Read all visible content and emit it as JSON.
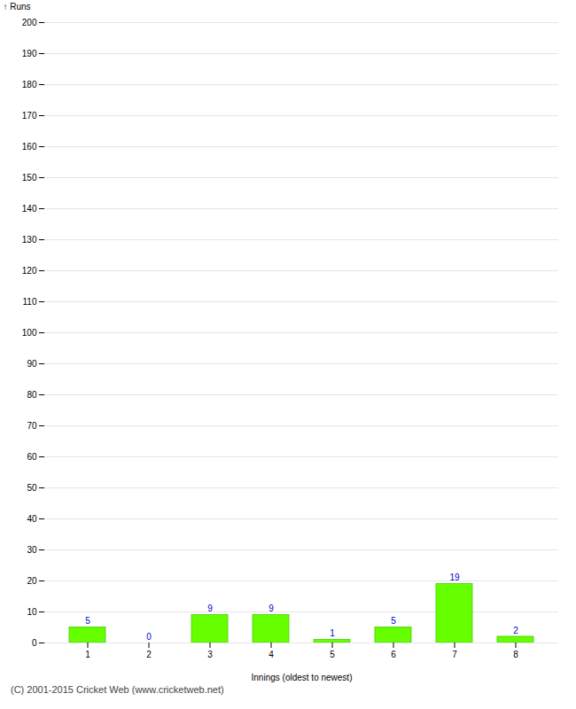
{
  "chart_data": {
    "type": "bar",
    "xlabel": "Innings (oldest to newest)",
    "ylabel": "Runs",
    "categories": [
      1,
      2,
      3,
      4,
      5,
      6,
      7,
      8
    ],
    "values": [
      5,
      0,
      9,
      9,
      1,
      5,
      19,
      2
    ],
    "color": "#66ff00",
    "ylim": [
      0,
      200
    ],
    "yticks": [
      0,
      10,
      20,
      30,
      40,
      50,
      60,
      70,
      80,
      90,
      100,
      110,
      120,
      130,
      140,
      150,
      160,
      170,
      180,
      190,
      200
    ],
    "grid": true,
    "data_labels": true,
    "caption": "(C) 2001-2015 Cricket Web (www.cricketweb.net)"
  }
}
